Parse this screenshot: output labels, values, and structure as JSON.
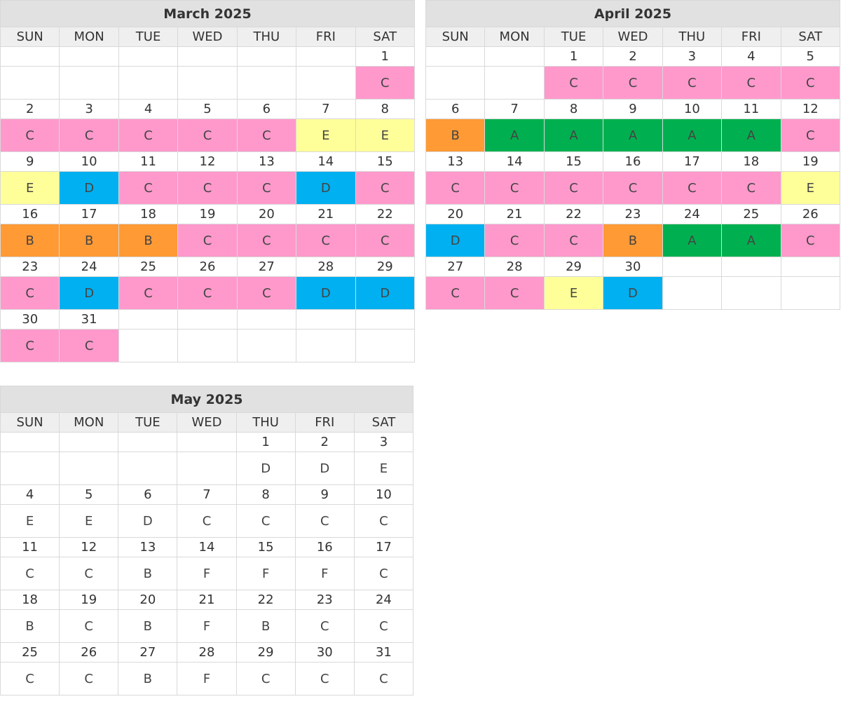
{
  "weekdays": [
    "SUN",
    "MON",
    "TUE",
    "WED",
    "THU",
    "FRI",
    "SAT"
  ],
  "legend_colors": {
    "A": "#00b050",
    "B": "#ff9a35",
    "C": "#ff99cc",
    "D": "#00b0f0",
    "E": "#ffff99"
  },
  "calendars": [
    {
      "title": "March 2025",
      "colored": true,
      "weeks": [
        [
          {
            "d": "",
            "c": ""
          },
          {
            "d": "",
            "c": ""
          },
          {
            "d": "",
            "c": ""
          },
          {
            "d": "",
            "c": ""
          },
          {
            "d": "",
            "c": ""
          },
          {
            "d": "",
            "c": ""
          },
          {
            "d": "1",
            "c": "C"
          }
        ],
        [
          {
            "d": "2",
            "c": "C"
          },
          {
            "d": "3",
            "c": "C"
          },
          {
            "d": "4",
            "c": "C"
          },
          {
            "d": "5",
            "c": "C"
          },
          {
            "d": "6",
            "c": "C"
          },
          {
            "d": "7",
            "c": "E"
          },
          {
            "d": "8",
            "c": "E"
          }
        ],
        [
          {
            "d": "9",
            "c": "E"
          },
          {
            "d": "10",
            "c": "D"
          },
          {
            "d": "11",
            "c": "C"
          },
          {
            "d": "12",
            "c": "C"
          },
          {
            "d": "13",
            "c": "C"
          },
          {
            "d": "14",
            "c": "D"
          },
          {
            "d": "15",
            "c": "C"
          }
        ],
        [
          {
            "d": "16",
            "c": "B"
          },
          {
            "d": "17",
            "c": "B"
          },
          {
            "d": "18",
            "c": "B"
          },
          {
            "d": "19",
            "c": "C"
          },
          {
            "d": "20",
            "c": "C"
          },
          {
            "d": "21",
            "c": "C"
          },
          {
            "d": "22",
            "c": "C"
          }
        ],
        [
          {
            "d": "23",
            "c": "C"
          },
          {
            "d": "24",
            "c": "D"
          },
          {
            "d": "25",
            "c": "C"
          },
          {
            "d": "26",
            "c": "C"
          },
          {
            "d": "27",
            "c": "C"
          },
          {
            "d": "28",
            "c": "D"
          },
          {
            "d": "29",
            "c": "D"
          }
        ],
        [
          {
            "d": "30",
            "c": "C"
          },
          {
            "d": "31",
            "c": "C"
          },
          {
            "d": "",
            "c": ""
          },
          {
            "d": "",
            "c": ""
          },
          {
            "d": "",
            "c": ""
          },
          {
            "d": "",
            "c": ""
          },
          {
            "d": "",
            "c": ""
          }
        ]
      ]
    },
    {
      "title": "April 2025",
      "colored": true,
      "weeks": [
        [
          {
            "d": "",
            "c": ""
          },
          {
            "d": "",
            "c": ""
          },
          {
            "d": "1",
            "c": "C"
          },
          {
            "d": "2",
            "c": "C"
          },
          {
            "d": "3",
            "c": "C"
          },
          {
            "d": "4",
            "c": "C"
          },
          {
            "d": "5",
            "c": "C"
          }
        ],
        [
          {
            "d": "6",
            "c": "B"
          },
          {
            "d": "7",
            "c": "A"
          },
          {
            "d": "8",
            "c": "A"
          },
          {
            "d": "9",
            "c": "A"
          },
          {
            "d": "10",
            "c": "A"
          },
          {
            "d": "11",
            "c": "A"
          },
          {
            "d": "12",
            "c": "C"
          }
        ],
        [
          {
            "d": "13",
            "c": "C"
          },
          {
            "d": "14",
            "c": "C"
          },
          {
            "d": "15",
            "c": "C"
          },
          {
            "d": "16",
            "c": "C"
          },
          {
            "d": "17",
            "c": "C"
          },
          {
            "d": "18",
            "c": "C"
          },
          {
            "d": "19",
            "c": "E"
          }
        ],
        [
          {
            "d": "20",
            "c": "D"
          },
          {
            "d": "21",
            "c": "C"
          },
          {
            "d": "22",
            "c": "C"
          },
          {
            "d": "23",
            "c": "B"
          },
          {
            "d": "24",
            "c": "A"
          },
          {
            "d": "25",
            "c": "A"
          },
          {
            "d": "26",
            "c": "C"
          }
        ],
        [
          {
            "d": "27",
            "c": "C"
          },
          {
            "d": "28",
            "c": "C"
          },
          {
            "d": "29",
            "c": "E"
          },
          {
            "d": "30",
            "c": "D"
          },
          {
            "d": "",
            "c": ""
          },
          {
            "d": "",
            "c": ""
          },
          {
            "d": "",
            "c": ""
          }
        ]
      ]
    },
    {
      "title": "May 2025",
      "colored": false,
      "weeks": [
        [
          {
            "d": "",
            "c": ""
          },
          {
            "d": "",
            "c": ""
          },
          {
            "d": "",
            "c": ""
          },
          {
            "d": "",
            "c": ""
          },
          {
            "d": "1",
            "c": "D"
          },
          {
            "d": "2",
            "c": "D"
          },
          {
            "d": "3",
            "c": "E"
          }
        ],
        [
          {
            "d": "4",
            "c": "E"
          },
          {
            "d": "5",
            "c": "E"
          },
          {
            "d": "6",
            "c": "D"
          },
          {
            "d": "7",
            "c": "C"
          },
          {
            "d": "8",
            "c": "C"
          },
          {
            "d": "9",
            "c": "C"
          },
          {
            "d": "10",
            "c": "C"
          }
        ],
        [
          {
            "d": "11",
            "c": "C"
          },
          {
            "d": "12",
            "c": "C"
          },
          {
            "d": "13",
            "c": "B"
          },
          {
            "d": "14",
            "c": "F"
          },
          {
            "d": "15",
            "c": "F"
          },
          {
            "d": "16",
            "c": "F"
          },
          {
            "d": "17",
            "c": "C"
          }
        ],
        [
          {
            "d": "18",
            "c": "B"
          },
          {
            "d": "19",
            "c": "C"
          },
          {
            "d": "20",
            "c": "B"
          },
          {
            "d": "21",
            "c": "F"
          },
          {
            "d": "22",
            "c": "B"
          },
          {
            "d": "23",
            "c": "C"
          },
          {
            "d": "24",
            "c": "C"
          }
        ],
        [
          {
            "d": "25",
            "c": "C"
          },
          {
            "d": "26",
            "c": "C"
          },
          {
            "d": "27",
            "c": "B"
          },
          {
            "d": "28",
            "c": "F"
          },
          {
            "d": "29",
            "c": "C"
          },
          {
            "d": "30",
            "c": "C"
          },
          {
            "d": "31",
            "c": "C"
          }
        ]
      ]
    }
  ]
}
